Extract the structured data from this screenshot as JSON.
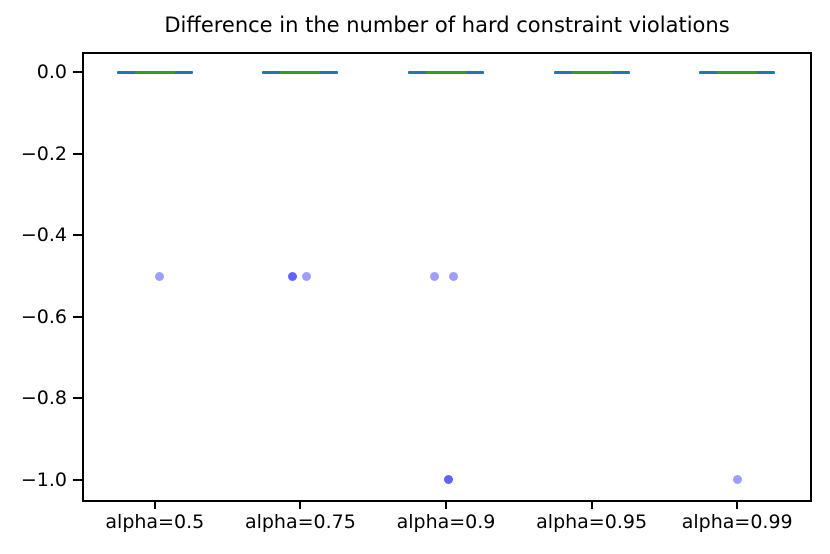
{
  "chart_data": {
    "type": "boxplot",
    "title": "Difference in the number of hard constraint violations",
    "xlabel": "",
    "ylabel": "",
    "grid": false,
    "legend": null,
    "categories": [
      "alpha=0.5",
      "alpha=0.75",
      "alpha=0.9",
      "alpha=0.95",
      "alpha=0.99"
    ],
    "ylim": [
      -1.05,
      0.05
    ],
    "yticks": [
      {
        "value": 0.0,
        "label": "0.0"
      },
      {
        "value": -0.2,
        "label": "−0.2"
      },
      {
        "value": -0.4,
        "label": "−0.4"
      },
      {
        "value": -0.6,
        "label": "−0.6"
      },
      {
        "value": -0.8,
        "label": "−0.8"
      },
      {
        "value": -1.0,
        "label": "−1.0"
      }
    ],
    "series": [
      {
        "category": "alpha=0.5",
        "median": 0.0,
        "q1": 0.0,
        "q3": 0.0,
        "whisker_low": 0.0,
        "whisker_high": 0.0,
        "outliers": [
          {
            "value": -0.5,
            "x_offset": 0.03,
            "overlap": 1
          }
        ]
      },
      {
        "category": "alpha=0.75",
        "median": 0.0,
        "q1": 0.0,
        "q3": 0.0,
        "whisker_low": 0.0,
        "whisker_high": 0.0,
        "outliers": [
          {
            "value": -0.5,
            "x_offset": -0.055,
            "overlap": 2
          },
          {
            "value": -0.5,
            "x_offset": 0.045,
            "overlap": 1
          }
        ]
      },
      {
        "category": "alpha=0.9",
        "median": 0.0,
        "q1": 0.0,
        "q3": 0.0,
        "whisker_low": 0.0,
        "whisker_high": 0.0,
        "outliers": [
          {
            "value": -0.5,
            "x_offset": -0.08,
            "overlap": 1
          },
          {
            "value": -0.5,
            "x_offset": 0.05,
            "overlap": 1
          },
          {
            "value": -1.0,
            "x_offset": 0.015,
            "overlap": 2
          }
        ]
      },
      {
        "category": "alpha=0.95",
        "median": 0.0,
        "q1": 0.0,
        "q3": 0.0,
        "whisker_low": 0.0,
        "whisker_high": 0.0,
        "outliers": []
      },
      {
        "category": "alpha=0.99",
        "median": 0.0,
        "q1": 0.0,
        "q3": 0.0,
        "whisker_low": 0.0,
        "whisker_high": 0.0,
        "outliers": [
          {
            "value": -1.0,
            "x_offset": 0.005,
            "overlap": 1
          }
        ]
      }
    ],
    "colors": {
      "box_line": "#1f77b4",
      "median_line": "#2ca02c",
      "outlier_fill": "#0000ff",
      "outlier_alpha": 0.38,
      "spine": "#000000",
      "text": "#000000",
      "background": "#ffffff"
    }
  }
}
